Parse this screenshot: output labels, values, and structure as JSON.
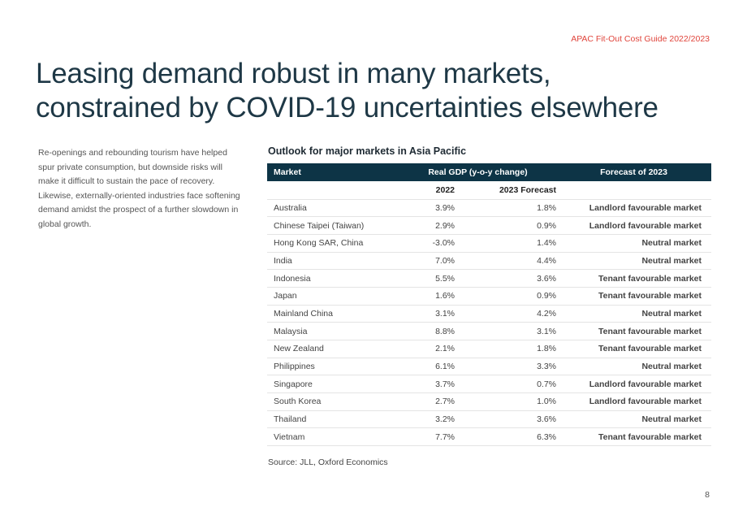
{
  "header": {
    "guide_title": "APAC Fit-Out Cost Guide 2022/2023"
  },
  "title": {
    "line1": "Leasing demand robust in many markets,",
    "line2": "constrained by COVID-19 uncertainties elsewhere"
  },
  "intro": "Re-openings and rebounding tourism have helped spur private consumption, but downside risks will make it difficult to sustain the pace of recovery. Likewise, externally-oriented industries face softening demand amidst the prospect of a further slowdown in global growth.",
  "table": {
    "title": "Outlook for major markets in Asia Pacific",
    "headers": {
      "market": "Market",
      "gdp": "Real GDP (y-o-y change)",
      "forecast": "Forecast of 2023",
      "y2022": "2022",
      "y2023": "2023 Forecast"
    },
    "colors": {
      "landlord": "#e0453c",
      "neutral": "#c7aa9e",
      "tenant": "#0d3446",
      "header_bg": "#0d3446"
    },
    "rows": [
      {
        "market": "Australia",
        "gdp2022": "3.9%",
        "gdp2023": "1.8%",
        "forecast": "Landlord favourable market",
        "type": "landlord"
      },
      {
        "market": "Chinese Taipei (Taiwan)",
        "gdp2022": "2.9%",
        "gdp2023": "0.9%",
        "forecast": "Landlord favourable market",
        "type": "landlord"
      },
      {
        "market": "Hong Kong SAR, China",
        "gdp2022": "-3.0%",
        "gdp2023": "1.4%",
        "forecast": "Neutral market",
        "type": "neutral"
      },
      {
        "market": "India",
        "gdp2022": "7.0%",
        "gdp2023": "4.4%",
        "forecast": "Neutral market",
        "type": "neutral"
      },
      {
        "market": "Indonesia",
        "gdp2022": "5.5%",
        "gdp2023": "3.6%",
        "forecast": "Tenant favourable market",
        "type": "tenant"
      },
      {
        "market": "Japan",
        "gdp2022": "1.6%",
        "gdp2023": "0.9%",
        "forecast": "Tenant favourable market",
        "type": "tenant"
      },
      {
        "market": "Mainland China",
        "gdp2022": "3.1%",
        "gdp2023": "4.2%",
        "forecast": "Neutral market",
        "type": "neutral"
      },
      {
        "market": "Malaysia",
        "gdp2022": "8.8%",
        "gdp2023": "3.1%",
        "forecast": "Tenant favourable market",
        "type": "tenant"
      },
      {
        "market": "New Zealand",
        "gdp2022": "2.1%",
        "gdp2023": "1.8%",
        "forecast": "Tenant favourable market",
        "type": "tenant"
      },
      {
        "market": "Philippines",
        "gdp2022": "6.1%",
        "gdp2023": "3.3%",
        "forecast": "Neutral market",
        "type": "neutral"
      },
      {
        "market": "Singapore",
        "gdp2022": "3.7%",
        "gdp2023": "0.7%",
        "forecast": "Landlord favourable market",
        "type": "landlord"
      },
      {
        "market": "South Korea",
        "gdp2022": "2.7%",
        "gdp2023": "1.0%",
        "forecast": "Landlord favourable market",
        "type": "landlord"
      },
      {
        "market": "Thailand",
        "gdp2022": "3.2%",
        "gdp2023": "3.6%",
        "forecast": "Neutral market",
        "type": "neutral"
      },
      {
        "market": "Vietnam",
        "gdp2022": "7.7%",
        "gdp2023": "6.3%",
        "forecast": "Tenant favourable market",
        "type": "tenant"
      }
    ]
  },
  "source": "Source: JLL, Oxford Economics",
  "page_number": "8"
}
